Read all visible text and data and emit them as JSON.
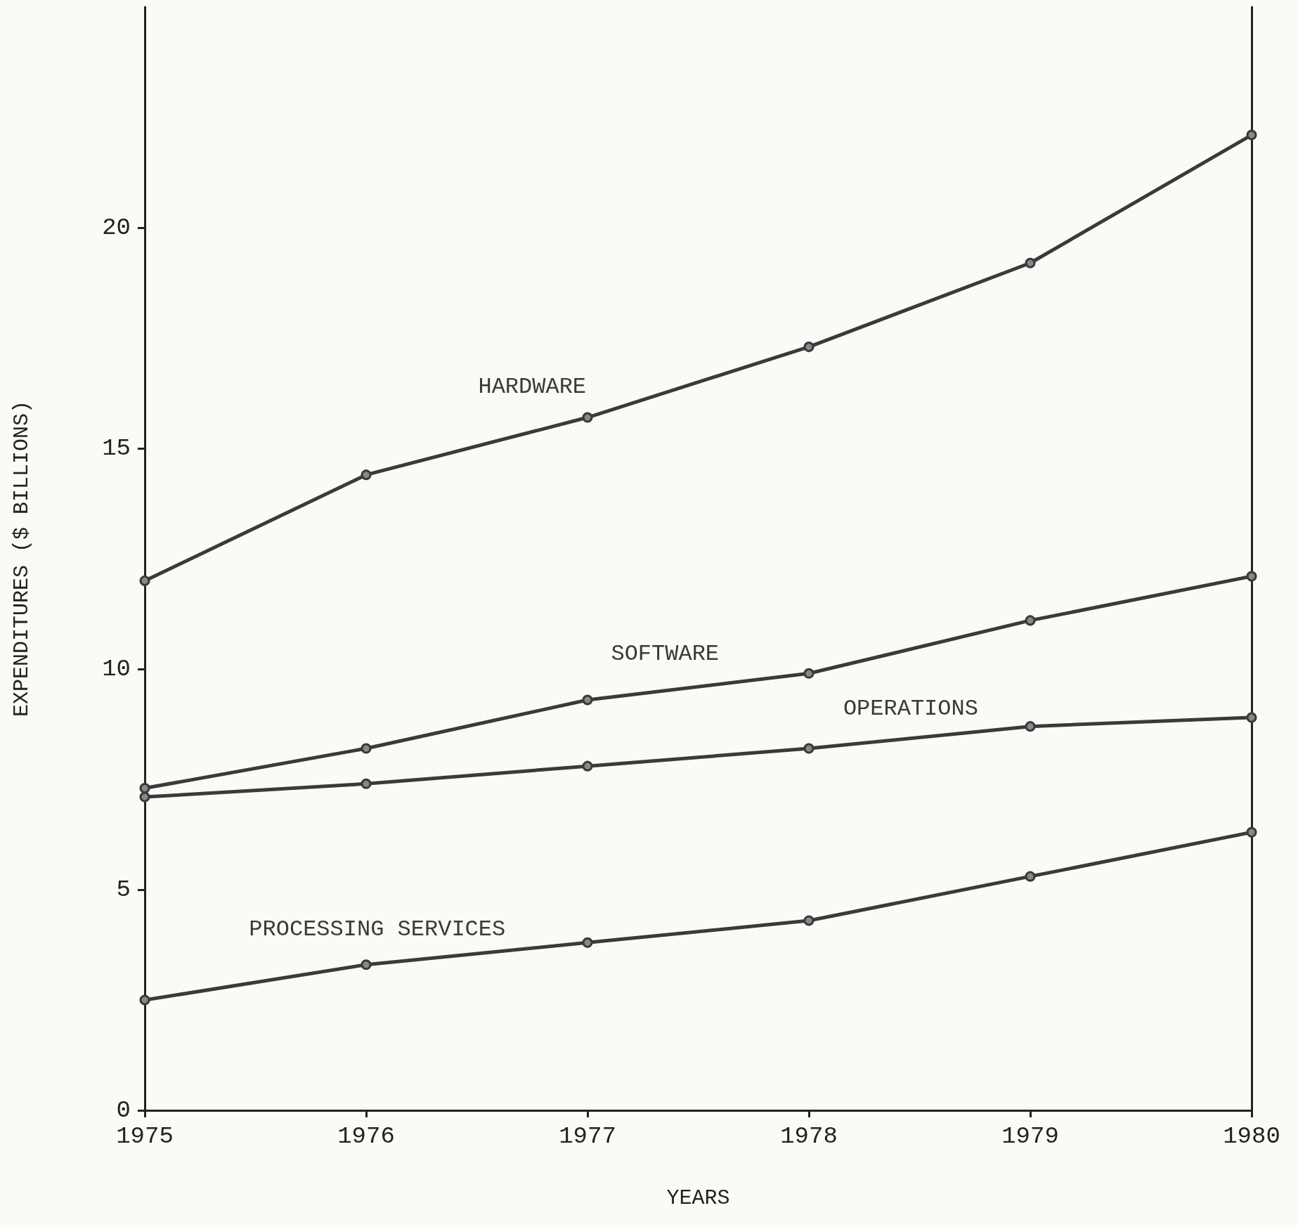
{
  "chart_data": {
    "type": "line",
    "xlabel": "YEARS",
    "ylabel": "EXPENDITURES ($ BILLIONS)",
    "x": [
      1975,
      1976,
      1977,
      1978,
      1979,
      1980
    ],
    "xlim": [
      1975,
      1980
    ],
    "xticks": [
      1975,
      1976,
      1977,
      1978,
      1979,
      1980
    ],
    "ylim": [
      0,
      25
    ],
    "yticks": [
      0,
      5,
      10,
      15,
      20
    ],
    "grid": false,
    "legend": false,
    "marker": "circle",
    "line_style": "solid",
    "series": [
      {
        "name": "HARDWARE",
        "color": "#3a3a3a",
        "values": [
          12.0,
          14.4,
          15.7,
          17.3,
          19.2,
          22.1
        ]
      },
      {
        "name": "SOFTWARE",
        "color": "#3a3a3a",
        "values": [
          7.3,
          8.2,
          9.3,
          9.9,
          11.1,
          12.1
        ]
      },
      {
        "name": "OPERATIONS",
        "color": "#3a3a3a",
        "values": [
          7.1,
          7.4,
          7.8,
          8.2,
          8.7,
          8.9
        ]
      },
      {
        "name": "PROCESSING SERVICES",
        "color": "#3a3a3a",
        "values": [
          2.5,
          3.3,
          3.8,
          4.3,
          5.3,
          6.3
        ]
      }
    ]
  }
}
